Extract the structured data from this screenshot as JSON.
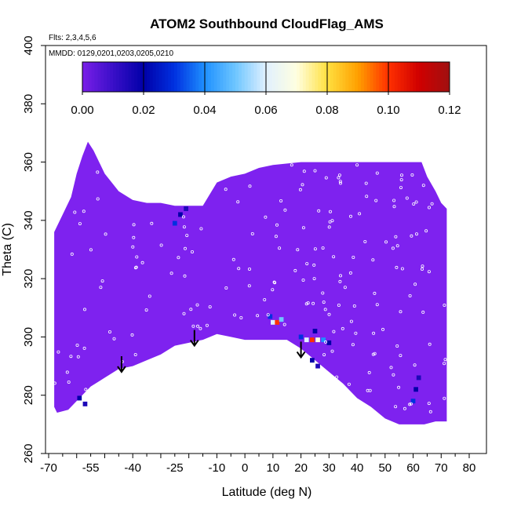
{
  "chart_data": {
    "type": "heatmap",
    "title": "ATOM2 Southbound CloudFlag_AMS",
    "annotations": {
      "flights": "Flts: 2,3,4,5,6",
      "dates": "MMDD: 0129,0201,0203,0205,0210"
    },
    "xlabel": "Latitude (deg N)",
    "ylabel": "Theta (C)",
    "xlim": [
      -70,
      80
    ],
    "ylim": [
      260,
      400
    ],
    "x_tick_labels": [
      "-70",
      "-55",
      "-40",
      "-25",
      "-10",
      "0",
      "10",
      "20",
      "30",
      "40",
      "50",
      "60",
      "70",
      "80"
    ],
    "y_tick_labels": [
      "260",
      "280",
      "300",
      "320",
      "340",
      "360",
      "380",
      "400"
    ],
    "colorbar": {
      "range": [
        0.0,
        0.12
      ],
      "tick_labels": [
        "0.00",
        "0.02",
        "0.04",
        "0.06",
        "0.08",
        "0.10",
        "0.12"
      ],
      "colors": [
        "#7a1fe8",
        "#3a0fc8",
        "#0000a8",
        "#0030e0",
        "#1e90ff",
        "#6ec6ff",
        "#e0f0ff",
        "#ffffe0",
        "#ffe040",
        "#ffa000",
        "#ff3000",
        "#d00000",
        "#a01010"
      ]
    },
    "field_color": "#7e22ef",
    "coverage_top": [
      [
        -68,
        336
      ],
      [
        -65,
        342
      ],
      [
        -62,
        348
      ],
      [
        -60,
        356
      ],
      [
        -58,
        362
      ],
      [
        -56,
        367
      ],
      [
        -54,
        364
      ],
      [
        -50,
        356
      ],
      [
        -45,
        350
      ],
      [
        -40,
        347
      ],
      [
        -35,
        346
      ],
      [
        -30,
        346
      ],
      [
        -25,
        345
      ],
      [
        -20,
        345
      ],
      [
        -15,
        345
      ],
      [
        -10,
        353
      ],
      [
        -5,
        355
      ],
      [
        0,
        356
      ],
      [
        5,
        358
      ],
      [
        10,
        359
      ],
      [
        20,
        360
      ],
      [
        30,
        360
      ],
      [
        40,
        360
      ],
      [
        50,
        360
      ],
      [
        60,
        360
      ],
      [
        63,
        360
      ],
      [
        65,
        355
      ],
      [
        68,
        350
      ],
      [
        70,
        346
      ],
      [
        72,
        344
      ]
    ],
    "coverage_bottom": [
      [
        72,
        271
      ],
      [
        68,
        271
      ],
      [
        64,
        270
      ],
      [
        55,
        270
      ],
      [
        50,
        272
      ],
      [
        45,
        276
      ],
      [
        40,
        279
      ],
      [
        35,
        284
      ],
      [
        30,
        288
      ],
      [
        25,
        292
      ],
      [
        20,
        296
      ],
      [
        15,
        299
      ],
      [
        10,
        299
      ],
      [
        5,
        299
      ],
      [
        0,
        299
      ],
      [
        -5,
        300
      ],
      [
        -10,
        301
      ],
      [
        -15,
        299
      ],
      [
        -20,
        298
      ],
      [
        -25,
        297
      ],
      [
        -30,
        294
      ],
      [
        -35,
        292
      ],
      [
        -40,
        290
      ],
      [
        -45,
        289
      ],
      [
        -50,
        286
      ],
      [
        -55,
        283
      ],
      [
        -60,
        278
      ],
      [
        -63,
        275
      ],
      [
        -67,
        274
      ],
      [
        -68,
        276
      ]
    ],
    "high_cells": [
      {
        "lat": -59,
        "theta": 279,
        "value": 0.02
      },
      {
        "lat": -57,
        "theta": 277,
        "value": 0.015
      },
      {
        "lat": -25,
        "theta": 339,
        "value": 0.03
      },
      {
        "lat": -23,
        "theta": 342,
        "value": 0.02
      },
      {
        "lat": -21,
        "theta": 344,
        "value": 0.015
      },
      {
        "lat": 10,
        "theta": 305,
        "value": 0.06
      },
      {
        "lat": 11.5,
        "theta": 305,
        "value": 0.1
      },
      {
        "lat": 13,
        "theta": 306,
        "value": 0.05
      },
      {
        "lat": 9,
        "theta": 307,
        "value": 0.03
      },
      {
        "lat": 22,
        "theta": 299,
        "value": 0.06
      },
      {
        "lat": 24,
        "theta": 299,
        "value": 0.1
      },
      {
        "lat": 26,
        "theta": 299,
        "value": 0.07
      },
      {
        "lat": 28,
        "theta": 299,
        "value": 0.04
      },
      {
        "lat": 20,
        "theta": 300,
        "value": 0.03
      },
      {
        "lat": 30,
        "theta": 298,
        "value": 0.02
      },
      {
        "lat": 25,
        "theta": 302,
        "value": 0.02
      },
      {
        "lat": 24,
        "theta": 292,
        "value": 0.02
      },
      {
        "lat": 26,
        "theta": 290,
        "value": 0.015
      },
      {
        "lat": 60,
        "theta": 278,
        "value": 0.03
      },
      {
        "lat": 61,
        "theta": 282,
        "value": 0.02
      },
      {
        "lat": 62,
        "theta": 286,
        "value": 0.015
      }
    ],
    "arrows": [
      {
        "lat": -44,
        "theta": 288
      },
      {
        "lat": -18,
        "theta": 297
      },
      {
        "lat": 20,
        "theta": 293
      }
    ]
  }
}
